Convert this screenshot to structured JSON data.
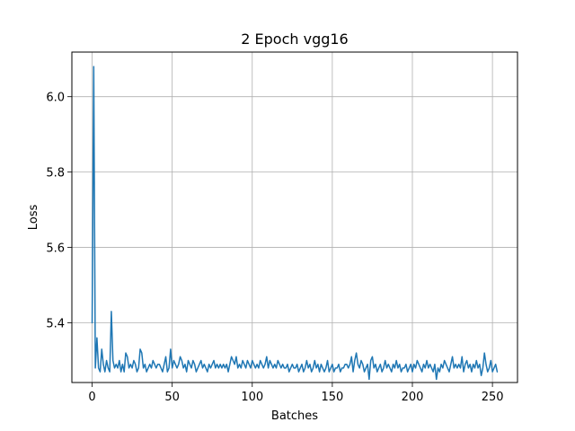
{
  "chart_data": {
    "type": "line",
    "title": "2 Epoch vgg16",
    "xlabel": "Batches",
    "ylabel": "Loss",
    "xlim": [
      -12.65,
      265.65
    ],
    "ylim": [
      5.2416,
      6.1184
    ],
    "xticks": [
      0,
      50,
      100,
      150,
      200,
      250
    ],
    "yticks": [
      5.4,
      5.6,
      5.8,
      6.0
    ],
    "xtick_labels": [
      "0",
      "50",
      "100",
      "150",
      "200",
      "250"
    ],
    "ytick_labels": [
      "5.4",
      "5.6",
      "5.8",
      "6.0"
    ],
    "grid": true,
    "line_color": "#1f77b4",
    "series": [
      {
        "values": [
          5.4,
          6.08,
          5.28,
          5.36,
          5.28,
          5.27,
          5.33,
          5.29,
          5.27,
          5.3,
          5.28,
          5.27,
          5.43,
          5.3,
          5.28,
          5.29,
          5.28,
          5.3,
          5.27,
          5.29,
          5.27,
          5.32,
          5.31,
          5.28,
          5.29,
          5.28,
          5.3,
          5.29,
          5.27,
          5.28,
          5.33,
          5.32,
          5.28,
          5.29,
          5.27,
          5.28,
          5.29,
          5.28,
          5.3,
          5.29,
          5.28,
          5.29,
          5.29,
          5.28,
          5.27,
          5.29,
          5.31,
          5.27,
          5.28,
          5.33,
          5.28,
          5.3,
          5.29,
          5.28,
          5.29,
          5.31,
          5.3,
          5.28,
          5.29,
          5.27,
          5.3,
          5.29,
          5.28,
          5.3,
          5.29,
          5.27,
          5.28,
          5.29,
          5.3,
          5.28,
          5.29,
          5.28,
          5.27,
          5.29,
          5.28,
          5.29,
          5.3,
          5.28,
          5.29,
          5.28,
          5.29,
          5.28,
          5.29,
          5.28,
          5.29,
          5.27,
          5.29,
          5.31,
          5.3,
          5.29,
          5.31,
          5.28,
          5.29,
          5.28,
          5.3,
          5.29,
          5.28,
          5.3,
          5.29,
          5.28,
          5.3,
          5.29,
          5.28,
          5.29,
          5.28,
          5.3,
          5.29,
          5.28,
          5.29,
          5.31,
          5.28,
          5.3,
          5.29,
          5.28,
          5.29,
          5.28,
          5.3,
          5.29,
          5.28,
          5.29,
          5.28,
          5.28,
          5.29,
          5.27,
          5.28,
          5.29,
          5.28,
          5.28,
          5.29,
          5.27,
          5.28,
          5.29,
          5.27,
          5.28,
          5.3,
          5.28,
          5.29,
          5.27,
          5.28,
          5.3,
          5.28,
          5.29,
          5.27,
          5.29,
          5.28,
          5.27,
          5.28,
          5.3,
          5.27,
          5.28,
          5.29,
          5.27,
          5.28,
          5.28,
          5.29,
          5.27,
          5.28,
          5.28,
          5.29,
          5.29,
          5.28,
          5.29,
          5.31,
          5.27,
          5.3,
          5.32,
          5.29,
          5.28,
          5.3,
          5.29,
          5.27,
          5.28,
          5.29,
          5.25,
          5.3,
          5.31,
          5.28,
          5.29,
          5.27,
          5.28,
          5.29,
          5.27,
          5.28,
          5.3,
          5.28,
          5.29,
          5.28,
          5.27,
          5.29,
          5.28,
          5.3,
          5.28,
          5.29,
          5.27,
          5.28,
          5.28,
          5.29,
          5.27,
          5.28,
          5.29,
          5.27,
          5.29,
          5.28,
          5.3,
          5.29,
          5.28,
          5.27,
          5.29,
          5.28,
          5.3,
          5.28,
          5.29,
          5.28,
          5.27,
          5.29,
          5.25,
          5.28,
          5.27,
          5.29,
          5.28,
          5.3,
          5.29,
          5.28,
          5.27,
          5.29,
          5.31,
          5.28,
          5.29,
          5.28,
          5.29,
          5.28,
          5.31,
          5.27,
          5.29,
          5.3,
          5.28,
          5.29,
          5.27,
          5.29,
          5.28,
          5.3,
          5.28,
          5.29,
          5.26,
          5.28,
          5.32,
          5.29,
          5.27,
          5.28,
          5.3,
          5.27,
          5.28,
          5.29,
          5.27
        ]
      }
    ]
  }
}
